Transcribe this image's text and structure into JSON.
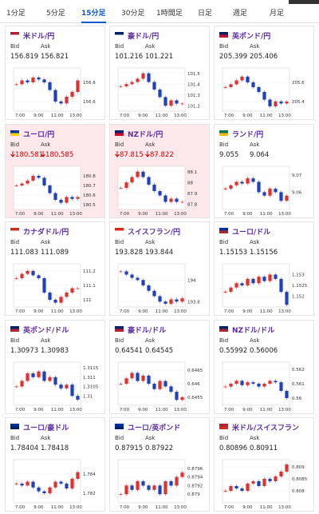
{
  "tabs": [
    "1分足",
    "5分足",
    "15分足",
    "30分足",
    "1時間足",
    "日足",
    "週足",
    "月足"
  ],
  "active_tab": 2,
  "bid_label": "Bid",
  "ask_label": "Ask",
  "time_labels": [
    "7:00",
    "9:00",
    "11:00",
    "13:00"
  ],
  "cards": [
    {
      "name": "米ドル/円",
      "bid": "156.819",
      "ask": "156.821",
      "flag": [
        "#b22234",
        "#fff"
      ],
      "ylim": [
        156.5,
        156.95
      ],
      "yticks": [
        156.8,
        156.6
      ],
      "closes": [
        156.78,
        156.82,
        156.8,
        156.85,
        156.83,
        156.8,
        156.72,
        156.6,
        156.58,
        156.65,
        156.7,
        156.82
      ]
    },
    {
      "name": "豪ドル/円",
      "bid": "101.216",
      "ask": "101.221",
      "flag": [
        "#012169",
        "#fff"
      ],
      "ylim": [
        101.15,
        101.55
      ],
      "yticks": [
        101.5,
        101.4,
        101.3,
        101.2
      ],
      "closes": [
        101.38,
        101.4,
        101.42,
        101.45,
        101.5,
        101.42,
        101.35,
        101.28,
        101.2,
        101.25,
        101.22,
        101.22
      ]
    },
    {
      "name": "英ポンド/円",
      "bid": "205.399",
      "ask": "205.406",
      "flag": [
        "#012169",
        "#c8102e"
      ],
      "ylim": [
        205.3,
        205.75
      ],
      "yticks": [
        205.6,
        205.4
      ],
      "closes": [
        205.55,
        205.58,
        205.62,
        205.66,
        205.6,
        205.55,
        205.5,
        205.42,
        205.35,
        205.4,
        205.38,
        205.4
      ]
    },
    {
      "name": "ユーロ/円",
      "bid": "180.581",
      "ask": "180.585",
      "flag": [
        "#003399",
        "#fc0"
      ],
      "down": true,
      "ylim": [
        180.45,
        180.9
      ],
      "yticks": [
        180.8,
        180.7,
        180.6,
        180.5
      ],
      "closes": [
        180.7,
        180.72,
        180.75,
        180.8,
        180.78,
        180.7,
        180.62,
        180.55,
        180.52,
        180.58,
        180.56,
        180.58
      ]
    },
    {
      "name": "NZドル/円",
      "bid": "87.815",
      "ask": "87.822",
      "flag": [
        "#012169",
        "#c8102e"
      ],
      "down": true,
      "ylim": [
        87.75,
        88.15
      ],
      "yticks": [
        88.1,
        88,
        87.9,
        87.8
      ],
      "closes": [
        87.95,
        88,
        88.05,
        88.1,
        88.05,
        87.98,
        87.92,
        87.88,
        87.82,
        87.85,
        87.82,
        87.82
      ]
    },
    {
      "name": "ランド/円",
      "bid": "9.055",
      "ask": "9.064",
      "flag": [
        "#007a4d",
        "#ffb612"
      ],
      "ylim": [
        9.05,
        9.075
      ],
      "yticks": [
        9.07,
        9.06
      ],
      "closes": [
        9.062,
        9.064,
        9.066,
        9.065,
        9.068,
        9.066,
        9.06,
        9.058,
        9.062,
        9.06,
        9.055,
        9.058
      ]
    },
    {
      "name": "カナダドル/円",
      "bid": "111.083",
      "ask": "111.089",
      "flag": [
        "#d52b1e",
        "#fff"
      ],
      "ylim": [
        110.95,
        111.25
      ],
      "yticks": [
        111.2,
        111.1,
        111
      ],
      "closes": [
        111.15,
        111.18,
        111.2,
        111.17,
        111.15,
        111.05,
        111,
        110.98,
        111.02,
        111.05,
        111.08,
        111.08
      ]
    },
    {
      "name": "スイスフラン/円",
      "bid": "193.828",
      "ask": "193.844",
      "flag": [
        "#d52b1e",
        "#fff"
      ],
      "ylim": [
        193.75,
        194.15
      ],
      "yticks": [
        194,
        193.8
      ],
      "closes": [
        194.08,
        194.05,
        194.02,
        194,
        193.95,
        193.9,
        193.85,
        193.8,
        193.78,
        193.82,
        193.8,
        193.83
      ]
    },
    {
      "name": "ユーロ/ドル",
      "bid": "1.15153",
      "ask": "1.15156",
      "flag": [
        "#003399",
        "#b22234"
      ],
      "ylim": [
        1.1515,
        1.1535
      ],
      "yticks": [
        1.153,
        1.1525,
        1.152
      ],
      "closes": [
        1.1522,
        1.1524,
        1.1526,
        1.1525,
        1.1528,
        1.1526,
        1.1529,
        1.1527,
        1.153,
        1.1528,
        1.1522,
        1.1516
      ]
    },
    {
      "name": "英ポンド/ドル",
      "bid": "1.30973",
      "ask": "1.30983",
      "flag": [
        "#012169",
        "#b22234"
      ],
      "ylim": [
        1.3095,
        1.3118
      ],
      "yticks": [
        1.3115,
        1.311,
        1.3105,
        1.31
      ],
      "closes": [
        1.3105,
        1.3108,
        1.3112,
        1.311,
        1.3113,
        1.3108,
        1.311,
        1.3106,
        1.3104,
        1.3106,
        1.31,
        1.3098
      ]
    },
    {
      "name": "豪ドル/ドル",
      "bid": "0.64541",
      "ask": "0.64545",
      "flag": [
        "#012169",
        "#b22234"
      ],
      "ylim": [
        0.6452,
        0.6468
      ],
      "yticks": [
        0.6465,
        0.646,
        0.6455
      ],
      "closes": [
        0.646,
        0.6462,
        0.6464,
        0.6461,
        0.6463,
        0.646,
        0.6458,
        0.6461,
        0.6459,
        0.6457,
        0.6454,
        0.6455
      ]
    },
    {
      "name": "NZドル/ドル",
      "bid": "0.55992",
      "ask": "0.56006",
      "flag": [
        "#012169",
        "#b22234"
      ],
      "ylim": [
        0.5595,
        0.5625
      ],
      "yticks": [
        0.562,
        0.561,
        0.56
      ],
      "closes": [
        0.5608,
        0.561,
        0.5612,
        0.5609,
        0.5611,
        0.561,
        0.5608,
        0.561,
        0.5612,
        0.5611,
        0.5605,
        0.56
      ]
    },
    {
      "name": "ユーロ/豪ドル",
      "bid": "1.78404",
      "ask": "1.78418",
      "flag": [
        "#003399",
        "#012169"
      ],
      "ylim": [
        1.781,
        1.7855
      ],
      "yticks": [
        1.784,
        1.782
      ],
      "closes": [
        1.783,
        1.7828,
        1.7832,
        1.7826,
        1.7822,
        1.782,
        1.7826,
        1.7832,
        1.783,
        1.7825,
        1.7835,
        1.7842
      ]
    },
    {
      "name": "ユーロ/英ポンド",
      "bid": "0.87915",
      "ask": "0.87922",
      "flag": [
        "#003399",
        "#012169"
      ],
      "ylim": [
        0.8788,
        0.8798
      ],
      "yticks": [
        0.8796,
        0.8794,
        0.8792,
        0.879
      ],
      "closes": [
        0.879,
        0.8792,
        0.8791,
        0.8793,
        0.8792,
        0.8791,
        0.8792,
        0.879,
        0.8793,
        0.8792,
        0.8794,
        0.8795
      ]
    },
    {
      "name": "米ドル/スイスフラン",
      "bid": "0.80896",
      "ask": "0.80911",
      "flag": [
        "#b22234",
        "#d52b1e"
      ],
      "ylim": [
        0.8075,
        0.8093
      ],
      "yticks": [
        0.809,
        0.8085,
        0.808
      ],
      "closes": [
        0.808,
        0.8082,
        0.8081,
        0.808,
        0.8083,
        0.8084,
        0.8082,
        0.8085,
        0.8084,
        0.8086,
        0.8088,
        0.8091
      ]
    }
  ]
}
